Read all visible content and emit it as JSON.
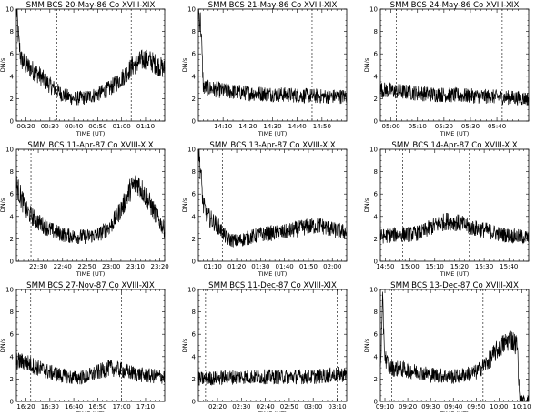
{
  "figure": {
    "grid_rows": 3,
    "grid_cols": 3
  },
  "chart_data": [
    {
      "type": "line",
      "title": "SMM BCS 20-May-86 Co XVIII-XIX",
      "xlabel": "TIME (UT)",
      "ylabel": "DN/s",
      "xlim": [
        "00:16",
        "01:18"
      ],
      "ylim": [
        0,
        10
      ],
      "xticks": [
        "00:20",
        "00:30",
        "00:40",
        "00:50",
        "01:00",
        "01:10"
      ],
      "yticks": [
        "0",
        "2",
        "4",
        "6",
        "8",
        "10"
      ],
      "markers": [
        "00:33",
        "01:04"
      ],
      "series": [
        {
          "x": [
            "00:16",
            "00:17",
            "00:18",
            "00:20",
            "00:25",
            "00:30",
            "00:35",
            "00:40",
            "00:45",
            "00:50",
            "00:55",
            "01:00",
            "01:05",
            "01:10",
            "01:15",
            "01:18"
          ],
          "values": [
            10.2,
            7.0,
            5.5,
            5.0,
            4.2,
            3.2,
            2.4,
            2.0,
            2.1,
            2.4,
            2.9,
            3.8,
            5.0,
            5.6,
            5.0,
            4.6
          ]
        }
      ]
    },
    {
      "type": "line",
      "title": "SMM BCS 21-May-86 Co XVIII-XIX",
      "xlabel": "TIME (UT)",
      "ylabel": "DN/s",
      "xlim": [
        "14:00",
        "15:00"
      ],
      "ylim": [
        0,
        10
      ],
      "xticks": [
        "14:10",
        "14:20",
        "14:30",
        "14:40",
        "14:50"
      ],
      "yticks": [
        "0",
        "2",
        "4",
        "6",
        "8",
        "10"
      ],
      "markers": [
        "14:16",
        "14:46"
      ],
      "series": [
        {
          "x": [
            "14:00",
            "14:01",
            "14:02",
            "14:05",
            "14:10",
            "14:20",
            "14:30",
            "14:40",
            "14:50",
            "15:00"
          ],
          "values": [
            10.0,
            8.5,
            3.0,
            2.9,
            2.7,
            2.5,
            2.4,
            2.3,
            2.2,
            2.2
          ]
        }
      ]
    },
    {
      "type": "line",
      "title": "SMM BCS 24-May-86 Co XVIII-XIX",
      "xlabel": "TIME (UT)",
      "ylabel": "DN/s",
      "xlim": [
        "04:56",
        "05:52"
      ],
      "ylim": [
        0,
        10
      ],
      "xticks": [
        "05:00",
        "05:10",
        "05:20",
        "05:30",
        "05:40"
      ],
      "yticks": [
        "0",
        "2",
        "4",
        "6",
        "8",
        "10"
      ],
      "markers": [
        "05:02",
        "05:42"
      ],
      "series": [
        {
          "x": [
            "04:56",
            "05:05",
            "05:15",
            "05:25",
            "05:35",
            "05:45",
            "05:52"
          ],
          "values": [
            2.8,
            2.6,
            2.4,
            2.3,
            2.2,
            2.1,
            2.0
          ]
        }
      ]
    },
    {
      "type": "line",
      "title": "SMM BCS 11-Apr-87 Co XVIII-XIX",
      "xlabel": "TIME (UT)",
      "ylabel": "DN/s",
      "xlim": [
        "22:21",
        "23:22"
      ],
      "ylim": [
        0,
        10
      ],
      "xticks": [
        "22:30",
        "22:40",
        "22:50",
        "23:00",
        "23:10",
        "23:20"
      ],
      "yticks": [
        "0",
        "2",
        "4",
        "6",
        "8",
        "10"
      ],
      "markers": [
        "22:27",
        "23:02"
      ],
      "series": [
        {
          "x": [
            "22:21",
            "22:25",
            "22:30",
            "22:35",
            "22:40",
            "22:45",
            "22:50",
            "22:55",
            "23:00",
            "23:05",
            "23:08",
            "23:11",
            "23:15",
            "23:20",
            "23:22"
          ],
          "values": [
            6.8,
            4.5,
            3.5,
            2.8,
            2.4,
            2.2,
            2.2,
            2.4,
            3.2,
            5.0,
            6.5,
            7.0,
            5.5,
            3.5,
            2.8
          ]
        }
      ]
    },
    {
      "type": "line",
      "title": "SMM BCS 13-Apr-87 Co XVIII-XIX",
      "xlabel": "TIME (UT)",
      "ylabel": "DN/s",
      "xlim": [
        "01:04",
        "02:06"
      ],
      "ylim": [
        0,
        10
      ],
      "xticks": [
        "01:10",
        "01:20",
        "01:30",
        "01:40",
        "01:50",
        "02:00"
      ],
      "yticks": [
        "0",
        "2",
        "4",
        "6",
        "8",
        "10"
      ],
      "markers": [
        "01:14",
        "01:54"
      ],
      "series": [
        {
          "x": [
            "01:04",
            "01:05",
            "01:06",
            "01:08",
            "01:12",
            "01:16",
            "01:20",
            "01:30",
            "01:40",
            "01:50",
            "01:55",
            "02:00",
            "02:06"
          ],
          "values": [
            10.2,
            8.0,
            5.0,
            4.0,
            3.2,
            2.0,
            1.8,
            2.4,
            2.6,
            3.1,
            3.2,
            2.8,
            2.6
          ]
        }
      ]
    },
    {
      "type": "line",
      "title": "SMM BCS 14-Apr-87 Co XVIII-XIX",
      "xlabel": "TIME (UT)",
      "ylabel": "DN/s",
      "xlim": [
        "14:48",
        "15:48"
      ],
      "ylim": [
        0,
        10
      ],
      "xticks": [
        "14:50",
        "15:00",
        "15:10",
        "15:20",
        "15:30",
        "15:40"
      ],
      "yticks": [
        "0",
        "2",
        "4",
        "6",
        "8",
        "10"
      ],
      "markers": [
        "14:57",
        "15:24"
      ],
      "series": [
        {
          "x": [
            "14:48",
            "14:55",
            "15:00",
            "15:05",
            "15:10",
            "15:15",
            "15:20",
            "15:25",
            "15:30",
            "15:35",
            "15:40",
            "15:48"
          ],
          "values": [
            2.2,
            2.4,
            2.4,
            2.6,
            3.2,
            3.6,
            3.4,
            3.0,
            2.8,
            2.5,
            2.3,
            2.1
          ]
        }
      ]
    },
    {
      "type": "line",
      "title": "SMM BCS 27-Nov-87 Co XVIII-XIX",
      "xlabel": "TIME (UT)",
      "ylabel": "DN/s",
      "xlim": [
        "16:16",
        "17:18"
      ],
      "ylim": [
        0,
        10
      ],
      "xticks": [
        "16:20",
        "16:30",
        "16:40",
        "16:50",
        "17:00",
        "17:10"
      ],
      "yticks": [
        "0",
        "2",
        "4",
        "6",
        "8",
        "10"
      ],
      "markers": [
        "16:22",
        "17:00"
      ],
      "series": [
        {
          "x": [
            "16:16",
            "16:20",
            "16:25",
            "16:30",
            "16:35",
            "16:40",
            "16:45",
            "16:50",
            "16:55",
            "17:00",
            "17:05",
            "17:10",
            "17:18"
          ],
          "values": [
            3.6,
            3.5,
            3.0,
            2.6,
            2.3,
            2.1,
            2.2,
            2.6,
            3.0,
            2.8,
            2.5,
            2.3,
            2.2
          ]
        }
      ]
    },
    {
      "type": "line",
      "title": "SMM BCS 11-Dec-87 Co XVIII-XIX",
      "xlabel": "TIME (UT)",
      "ylabel": "DN/s",
      "xlim": [
        "02:12",
        "03:14"
      ],
      "ylim": [
        0,
        10
      ],
      "xticks": [
        "02:20",
        "02:30",
        "02:40",
        "02:50",
        "03:00",
        "03:10"
      ],
      "yticks": [
        "0",
        "2",
        "4",
        "6",
        "8",
        "10"
      ],
      "markers": [
        "02:15",
        "03:10"
      ],
      "series": [
        {
          "x": [
            "02:12",
            "02:20",
            "02:30",
            "02:40",
            "02:50",
            "03:00",
            "03:10",
            "03:14"
          ],
          "values": [
            2.0,
            2.1,
            2.2,
            2.2,
            2.2,
            2.2,
            2.4,
            2.4
          ]
        }
      ]
    },
    {
      "type": "line",
      "title": "SMM BCS 13-Dec-87 Co XVIII-XIX",
      "xlabel": "TIME (UT)",
      "ylabel": "DN/s",
      "xlim": [
        "09:08",
        "10:13"
      ],
      "ylim": [
        0,
        10
      ],
      "xticks": [
        "09:10",
        "09:20",
        "09:30",
        "09:40",
        "09:50",
        "10:00",
        "10:10"
      ],
      "yticks": [
        "0",
        "2",
        "4",
        "6",
        "8",
        "10"
      ],
      "markers": [
        "09:13",
        "09:53"
      ],
      "series": [
        {
          "x": [
            "09:08",
            "09:09",
            "09:10",
            "09:12",
            "09:20",
            "09:30",
            "09:40",
            "09:50",
            "09:55",
            "10:00",
            "10:05",
            "10:08",
            "10:09",
            "10:10",
            "10:13"
          ],
          "values": [
            3.0,
            8.5,
            4.0,
            3.0,
            2.8,
            2.4,
            2.2,
            2.6,
            3.5,
            4.8,
            5.6,
            5.0,
            0.3,
            0.1,
            0.1
          ]
        }
      ]
    }
  ]
}
